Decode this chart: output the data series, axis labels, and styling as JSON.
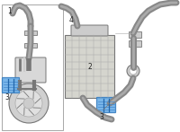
{
  "bg_color": "#ffffff",
  "border_color": "#aaaaaa",
  "highlight_color": "#3a7fc1",
  "highlight_fill": "#6aaee8",
  "label_color": "#222222",
  "dc": "#777777",
  "mc": "#aaaaaa",
  "lght": "#cccccc",
  "lfs": 5.5
}
